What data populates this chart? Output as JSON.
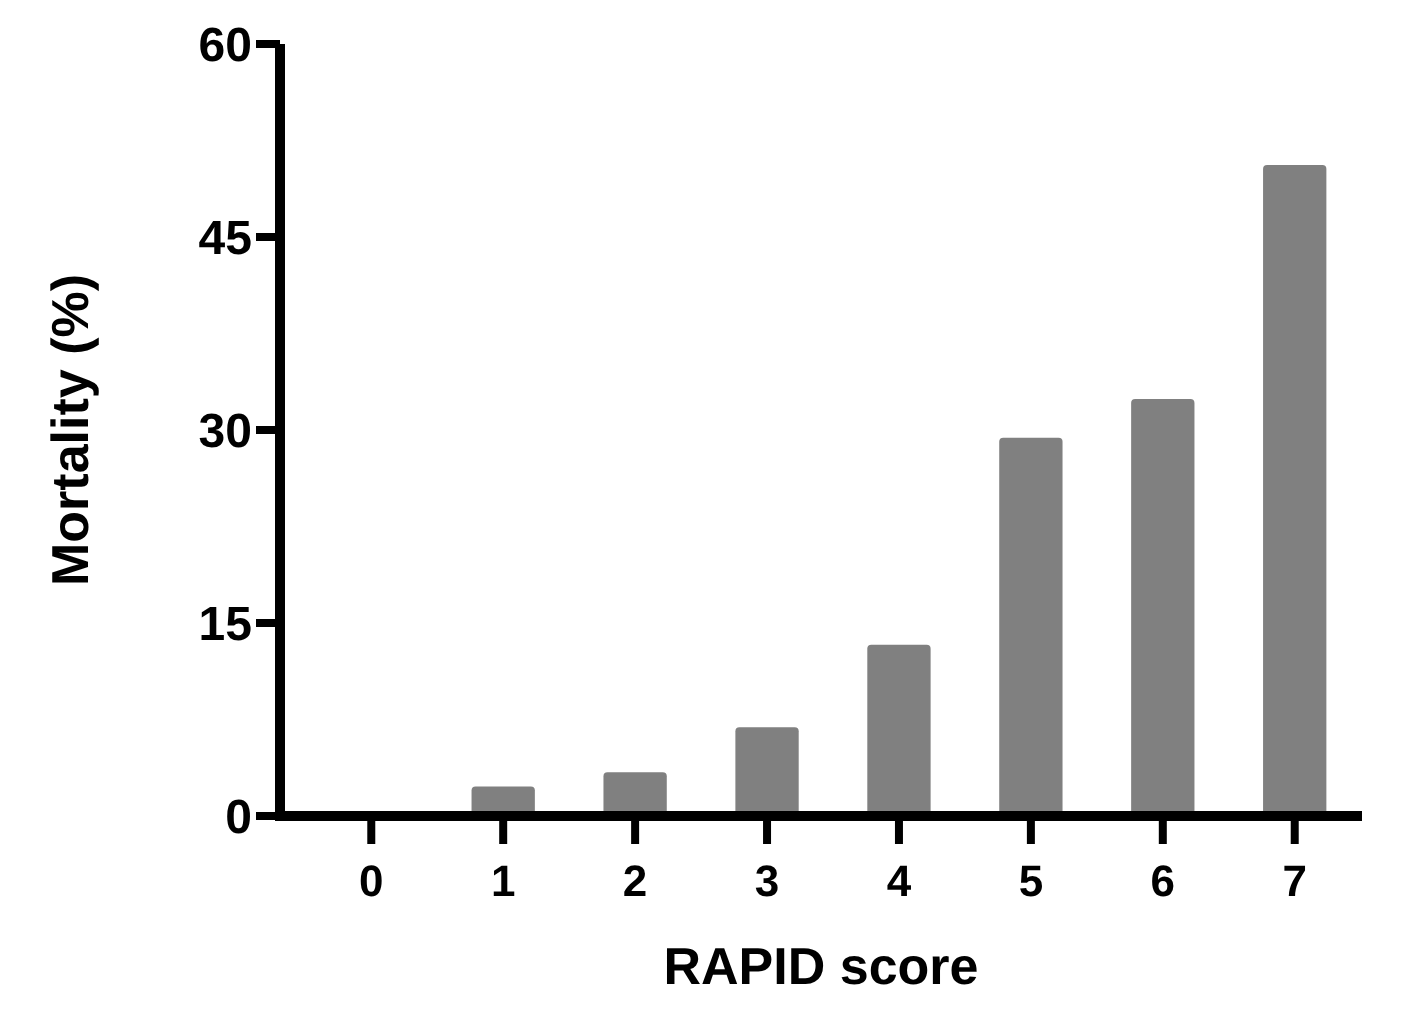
{
  "chart_data": {
    "type": "bar",
    "xlabel": "RAPID score",
    "ylabel": "Mortality (%)",
    "categories": [
      "0",
      "1",
      "2",
      "3",
      "4",
      "5",
      "6",
      "7"
    ],
    "values": [
      0,
      2.3,
      3.4,
      6.9,
      13.3,
      29.4,
      32.4,
      50.6
    ],
    "color": "#808080",
    "ylim": [
      0,
      60
    ],
    "yticks": [
      0,
      15,
      30,
      45,
      60
    ],
    "grid": false
  }
}
